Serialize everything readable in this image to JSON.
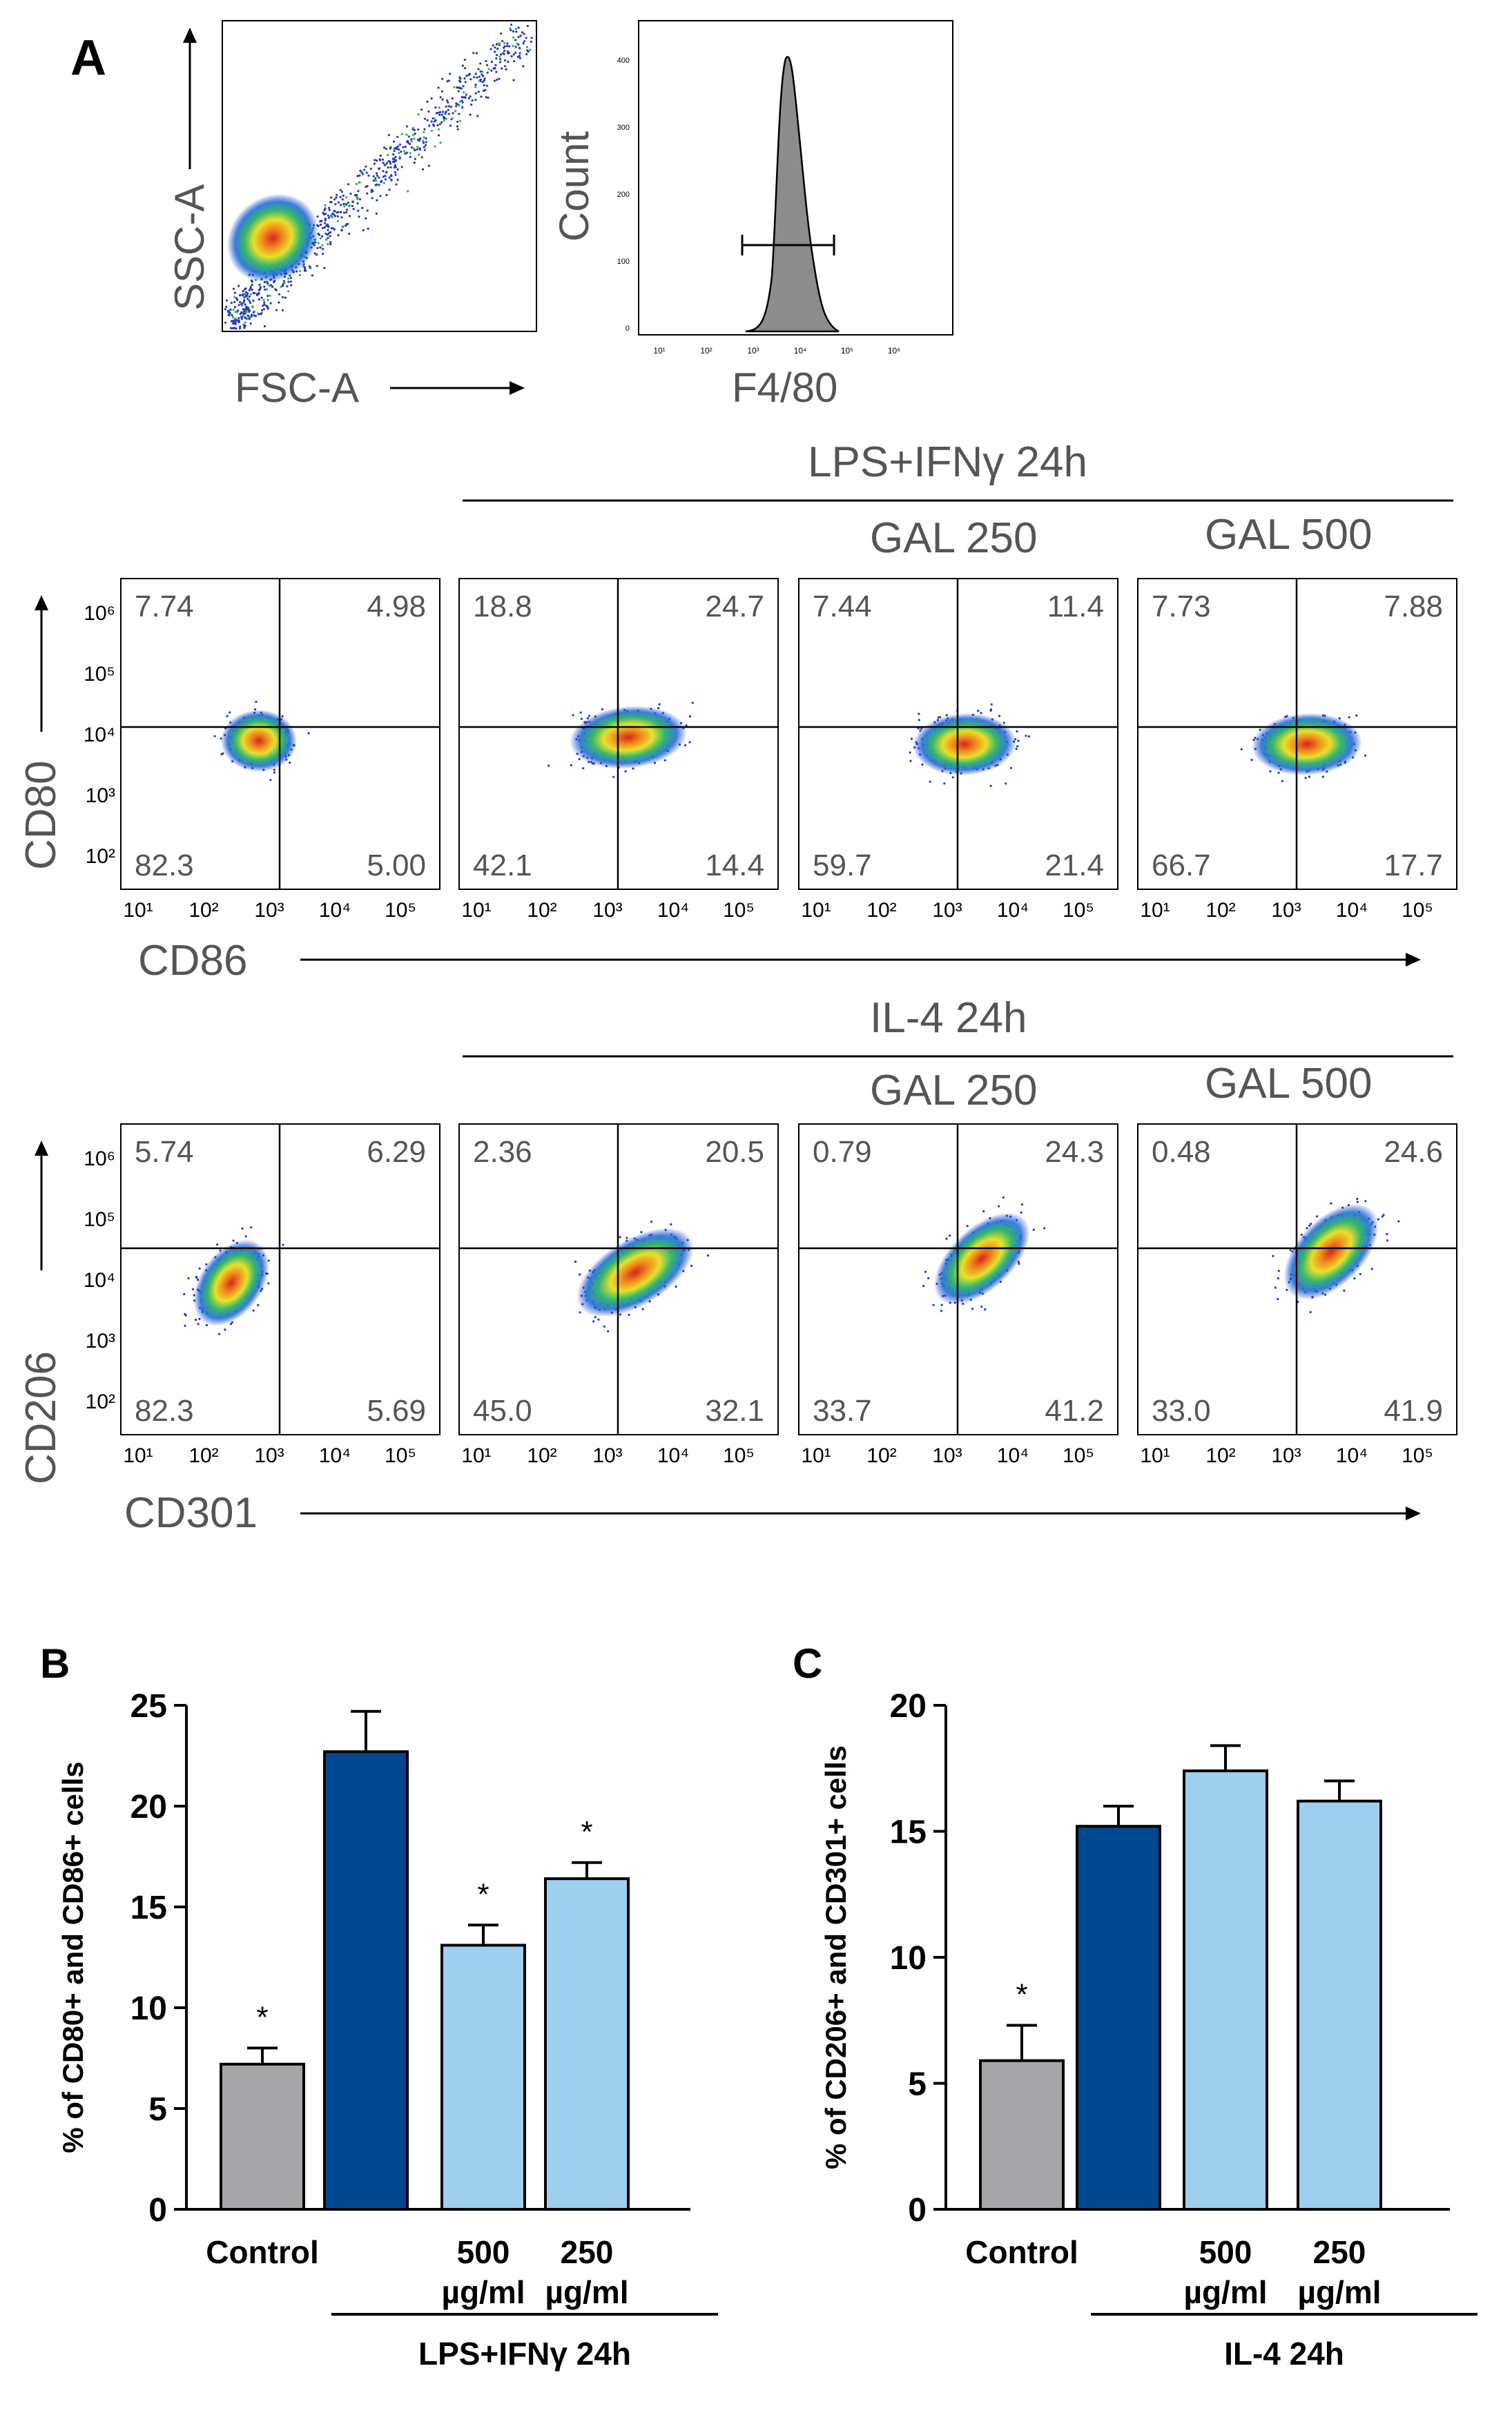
{
  "panel_a": {
    "label": "A",
    "scatter": {
      "x_label": "FSC-A",
      "y_label": "SSC-A"
    },
    "histogram": {
      "x_label": "F4/80",
      "y_label": "Count",
      "y_ticks": [
        "0",
        "100",
        "200",
        "300",
        "400"
      ],
      "x_ticks": [
        "10¹",
        "10²",
        "10³",
        "10⁴",
        "10⁵",
        "10⁶"
      ]
    },
    "row1": {
      "header": "LPS+IFNγ 24h",
      "sub_headers": [
        "GAL 250",
        "GAL 500"
      ],
      "x_label": "CD86",
      "y_label": "CD80",
      "y_ticks": [
        "10⁶",
        "10⁵",
        "10⁴",
        "10³",
        "10²"
      ],
      "x_ticks": [
        "10¹",
        "10²",
        "10³",
        "10⁴",
        "10⁵"
      ],
      "plots": [
        {
          "tl": "7.74",
          "tr": "4.98",
          "bl": "82.3",
          "br": "5.00"
        },
        {
          "tl": "18.8",
          "tr": "24.7",
          "bl": "42.1",
          "br": "14.4"
        },
        {
          "tl": "7.44",
          "tr": "11.4",
          "bl": "59.7",
          "br": "21.4"
        },
        {
          "tl": "7.73",
          "tr": "7.88",
          "bl": "66.7",
          "br": "17.7"
        }
      ]
    },
    "row2": {
      "header": "IL-4 24h",
      "sub_headers": [
        "GAL 250",
        "GAL 500"
      ],
      "x_label": "CD301",
      "y_label": "CD206",
      "y_ticks": [
        "10⁶",
        "10⁵",
        "10⁴",
        "10³",
        "10²"
      ],
      "x_ticks": [
        "10¹",
        "10²",
        "10³",
        "10⁴",
        "10⁵"
      ],
      "plots": [
        {
          "tl": "5.74",
          "tr": "6.29",
          "bl": "82.3",
          "br": "5.69"
        },
        {
          "tl": "2.36",
          "tr": "20.5",
          "bl": "45.0",
          "br": "32.1"
        },
        {
          "tl": "0.79",
          "tr": "24.3",
          "bl": "33.7",
          "br": "41.2"
        },
        {
          "tl": "0.48",
          "tr": "24.6",
          "bl": "33.0",
          "br": "41.9"
        }
      ]
    }
  },
  "colors": {
    "control": "#a6a6a8",
    "treated": "#004990",
    "gal": "#9fcfee",
    "dark_text": "#555555"
  },
  "chart_data": [
    {
      "panel": "B",
      "type": "bar",
      "ylabel": "% of CD80+ and CD86+ cells",
      "ylim": [
        0,
        25
      ],
      "yticks": [
        0,
        5,
        10,
        15,
        20,
        25
      ],
      "categories": [
        "Control",
        "",
        "500 µg/ml",
        "250 µg/ml"
      ],
      "values": [
        7.2,
        22.7,
        13.1,
        16.4
      ],
      "errors": [
        0.8,
        2.0,
        1.0,
        0.8
      ],
      "significance": [
        "*",
        "",
        "*",
        "*"
      ],
      "group_label": "LPS+IFNγ 24h"
    },
    {
      "panel": "C",
      "type": "bar",
      "ylabel": "% of CD206+ and CD301+ cells",
      "ylim": [
        0,
        20
      ],
      "yticks": [
        0,
        5,
        10,
        15,
        20
      ],
      "categories": [
        "Control",
        "",
        "500 µg/ml",
        "250 µg/ml"
      ],
      "values": [
        5.9,
        15.2,
        17.4,
        16.2
      ],
      "errors": [
        1.4,
        0.8,
        1.0,
        0.8
      ],
      "significance": [
        "*",
        "",
        "",
        ""
      ],
      "group_label": "IL-4 24h"
    }
  ]
}
